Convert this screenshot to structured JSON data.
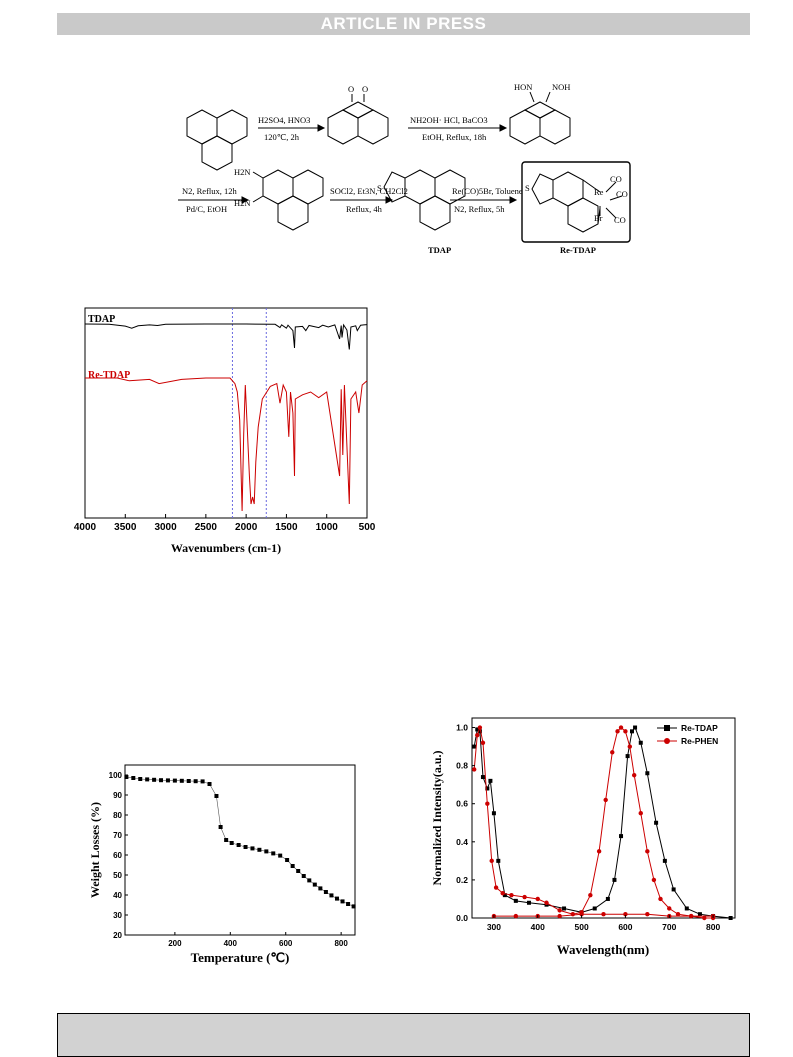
{
  "header": {
    "banner": "ARTICLE IN PRESS"
  },
  "scheme": {
    "step1": {
      "top": "H2SO4, HNO3",
      "bottom": "120℃, 2h"
    },
    "step2": {
      "top": "NH2OH· HCl, BaCO3",
      "bottom": "EtOH, Reflux, 18h"
    },
    "step3": {
      "top": "N2, Reflux, 12h",
      "bottom": "Pd/C, EtOH"
    },
    "step4": {
      "top": "SOCl2, Et3N, CH2Cl2",
      "bottom": "Reflux, 4h"
    },
    "step5": {
      "top": "Re(CO)5Br, Toluene",
      "bottom": "N2, Reflux, 5h"
    },
    "labels": {
      "tdap": "TDAP",
      "re_tdap": "Re-TDAP",
      "hon": "HON",
      "noh": "NOH",
      "co1": "CO",
      "co2": "CO",
      "co3": "CO",
      "br": "Br",
      "re": "Re",
      "s": "S",
      "n": "N",
      "o": "O",
      "h2n": "H2N"
    }
  },
  "chart_data": [
    {
      "type": "line",
      "id": "ir",
      "xlabel": "Wavenumbers (cm-1)",
      "x_ticks": [
        "4000",
        "3500",
        "3000",
        "2500",
        "2000",
        "1500",
        "1000",
        "500"
      ],
      "xlim": [
        4000,
        500
      ],
      "series": [
        {
          "name": "TDAP",
          "color": "#000000",
          "points": [
            [
              4000,
              1.0
            ],
            [
              3700,
              0.99
            ],
            [
              3500,
              0.93
            ],
            [
              3420,
              0.86
            ],
            [
              3340,
              0.94
            ],
            [
              3200,
              0.97
            ],
            [
              3100,
              0.95
            ],
            [
              3000,
              0.99
            ],
            [
              2500,
              1.0
            ],
            [
              2000,
              1.0
            ],
            [
              1640,
              0.99
            ],
            [
              1580,
              0.88
            ],
            [
              1560,
              0.97
            ],
            [
              1500,
              0.86
            ],
            [
              1480,
              0.96
            ],
            [
              1420,
              0.78
            ],
            [
              1400,
              0.2
            ],
            [
              1390,
              0.9
            ],
            [
              1300,
              0.92
            ],
            [
              1260,
              0.78
            ],
            [
              1220,
              0.95
            ],
            [
              1100,
              0.88
            ],
            [
              1050,
              0.96
            ],
            [
              980,
              0.9
            ],
            [
              900,
              0.97
            ],
            [
              840,
              0.5
            ],
            [
              820,
              0.95
            ],
            [
              810,
              0.55
            ],
            [
              790,
              0.97
            ],
            [
              750,
              0.8
            ],
            [
              720,
              0.15
            ],
            [
              700,
              0.9
            ],
            [
              640,
              0.94
            ],
            [
              620,
              0.78
            ],
            [
              580,
              0.96
            ],
            [
              540,
              0.97
            ],
            [
              500,
              0.98
            ]
          ]
        },
        {
          "name": "Re-TDAP",
          "color": "#cc0000",
          "points": [
            [
              4000,
              1.0
            ],
            [
              3600,
              1.0
            ],
            [
              3450,
              0.98
            ],
            [
              3200,
              0.99
            ],
            [
              3080,
              0.96
            ],
            [
              2800,
              0.99
            ],
            [
              2500,
              1.0
            ],
            [
              2200,
              1.0
            ],
            [
              2140,
              0.96
            ],
            [
              2110,
              0.9
            ],
            [
              2080,
              0.7
            ],
            [
              2050,
              0.05
            ],
            [
              2030,
              0.6
            ],
            [
              2010,
              0.95
            ],
            [
              1990,
              0.7
            ],
            [
              1960,
              0.3
            ],
            [
              1940,
              0.1
            ],
            [
              1920,
              0.15
            ],
            [
              1900,
              0.1
            ],
            [
              1880,
              0.4
            ],
            [
              1850,
              0.65
            ],
            [
              1800,
              0.85
            ],
            [
              1700,
              0.94
            ],
            [
              1620,
              0.96
            ],
            [
              1580,
              0.82
            ],
            [
              1540,
              0.95
            ],
            [
              1500,
              0.9
            ],
            [
              1470,
              0.58
            ],
            [
              1450,
              0.9
            ],
            [
              1420,
              0.75
            ],
            [
              1400,
              0.3
            ],
            [
              1390,
              0.85
            ],
            [
              1300,
              0.88
            ],
            [
              1200,
              0.9
            ],
            [
              1100,
              0.86
            ],
            [
              1000,
              0.9
            ],
            [
              840,
              0.3
            ],
            [
              820,
              0.92
            ],
            [
              800,
              0.45
            ],
            [
              780,
              0.95
            ],
            [
              720,
              0.1
            ],
            [
              700,
              0.85
            ],
            [
              640,
              0.9
            ],
            [
              600,
              0.75
            ],
            [
              560,
              0.95
            ],
            [
              500,
              0.98
            ]
          ]
        }
      ],
      "reference_lines_x": [
        2170,
        1750
      ]
    },
    {
      "type": "scatter",
      "id": "tga",
      "xlabel": "Temperature (℃)",
      "ylabel": "Weight Losses (%)",
      "xlim": [
        20,
        850
      ],
      "ylim": [
        20,
        105
      ],
      "x_ticks": [
        "200",
        "400",
        "600",
        "800"
      ],
      "y_ticks": [
        "20",
        "30",
        "40",
        "50",
        "60",
        "70",
        "80",
        "90",
        "100"
      ],
      "series": [
        {
          "name": "",
          "points": [
            [
              25,
              99
            ],
            [
              50,
              98.5
            ],
            [
              75,
              98
            ],
            [
              100,
              97.8
            ],
            [
              125,
              97.6
            ],
            [
              150,
              97.4
            ],
            [
              175,
              97.3
            ],
            [
              200,
              97.2
            ],
            [
              225,
              97.1
            ],
            [
              250,
              97
            ],
            [
              275,
              96.9
            ],
            [
              300,
              96.8
            ],
            [
              325,
              95.5
            ],
            [
              350,
              89.5
            ],
            [
              365,
              74
            ],
            [
              385,
              67.5
            ],
            [
              405,
              66
            ],
            [
              430,
              65
            ],
            [
              455,
              64
            ],
            [
              480,
              63.3
            ],
            [
              505,
              62.6
            ],
            [
              530,
              61.8
            ],
            [
              555,
              60.8
            ],
            [
              580,
              59.7
            ],
            [
              605,
              57.5
            ],
            [
              625,
              54.5
            ],
            [
              645,
              52
            ],
            [
              665,
              49.5
            ],
            [
              685,
              47.3
            ],
            [
              705,
              45.2
            ],
            [
              725,
              43.3
            ],
            [
              745,
              41.5
            ],
            [
              765,
              39.8
            ],
            [
              785,
              38.2
            ],
            [
              805,
              36.8
            ],
            [
              825,
              35.5
            ],
            [
              845,
              34.3
            ]
          ]
        }
      ]
    },
    {
      "type": "line",
      "id": "abs_pl",
      "xlabel": "Wavelength(nm)",
      "ylabel": "Normalized Intensity(a.u.)",
      "xlim": [
        250,
        850
      ],
      "ylim": [
        0,
        1.05
      ],
      "x_ticks": [
        "300",
        "400",
        "500",
        "600",
        "700",
        "800"
      ],
      "y_ticks": [
        "0.0",
        "0.2",
        "0.4",
        "0.6",
        "0.8",
        "1.0"
      ],
      "legend_position": "top-right",
      "series": [
        {
          "name": "Re-TDAP",
          "color": "#000000",
          "marker": "square",
          "points": [
            [
              255,
              0.9
            ],
            [
              262,
              0.99
            ],
            [
              268,
              0.98
            ],
            [
              275,
              0.74
            ],
            [
              285,
              0.68
            ],
            [
              292,
              0.72
            ],
            [
              300,
              0.55
            ],
            [
              310,
              0.3
            ],
            [
              325,
              0.12
            ],
            [
              350,
              0.09
            ],
            [
              380,
              0.08
            ],
            [
              420,
              0.07
            ],
            [
              460,
              0.05
            ],
            [
              500,
              0.03
            ],
            [
              530,
              0.05
            ],
            [
              560,
              0.1
            ],
            [
              575,
              0.2
            ],
            [
              590,
              0.43
            ],
            [
              605,
              0.85
            ],
            [
              615,
              0.98
            ],
            [
              622,
              1.0
            ],
            [
              635,
              0.92
            ],
            [
              650,
              0.76
            ],
            [
              670,
              0.5
            ],
            [
              690,
              0.3
            ],
            [
              710,
              0.15
            ],
            [
              740,
              0.05
            ],
            [
              770,
              0.02
            ],
            [
              800,
              0.01
            ],
            [
              840,
              0.0
            ]
          ]
        },
        {
          "name": "Re-PHEN",
          "color": "#cc0000",
          "marker": "circle",
          "points": [
            [
              255,
              0.78
            ],
            [
              262,
              0.96
            ],
            [
              268,
              1.0
            ],
            [
              275,
              0.92
            ],
            [
              285,
              0.6
            ],
            [
              295,
              0.3
            ],
            [
              305,
              0.16
            ],
            [
              320,
              0.13
            ],
            [
              340,
              0.12
            ],
            [
              370,
              0.11
            ],
            [
              400,
              0.1
            ],
            [
              420,
              0.08
            ],
            [
              450,
              0.04
            ],
            [
              480,
              0.02
            ],
            [
              500,
              0.03
            ],
            [
              520,
              0.12
            ],
            [
              540,
              0.35
            ],
            [
              555,
              0.62
            ],
            [
              570,
              0.87
            ],
            [
              582,
              0.98
            ],
            [
              590,
              1.0
            ],
            [
              600,
              0.98
            ],
            [
              610,
              0.9
            ],
            [
              620,
              0.75
            ],
            [
              635,
              0.55
            ],
            [
              650,
              0.35
            ],
            [
              665,
              0.2
            ],
            [
              680,
              0.1
            ],
            [
              700,
              0.05
            ],
            [
              720,
              0.02
            ],
            [
              750,
              0.01
            ],
            [
              780,
              0.0
            ],
            [
              800,
              0.0
            ]
          ]
        },
        {
          "name": "",
          "color": "#cc0000",
          "marker": "circle",
          "points": [
            [
              300,
              0.01
            ],
            [
              350,
              0.01
            ],
            [
              400,
              0.01
            ],
            [
              450,
              0.01
            ],
            [
              500,
              0.02
            ],
            [
              550,
              0.02
            ],
            [
              600,
              0.02
            ],
            [
              650,
              0.02
            ],
            [
              700,
              0.01
            ],
            [
              750,
              0.01
            ],
            [
              800,
              0.01
            ]
          ]
        }
      ]
    }
  ]
}
